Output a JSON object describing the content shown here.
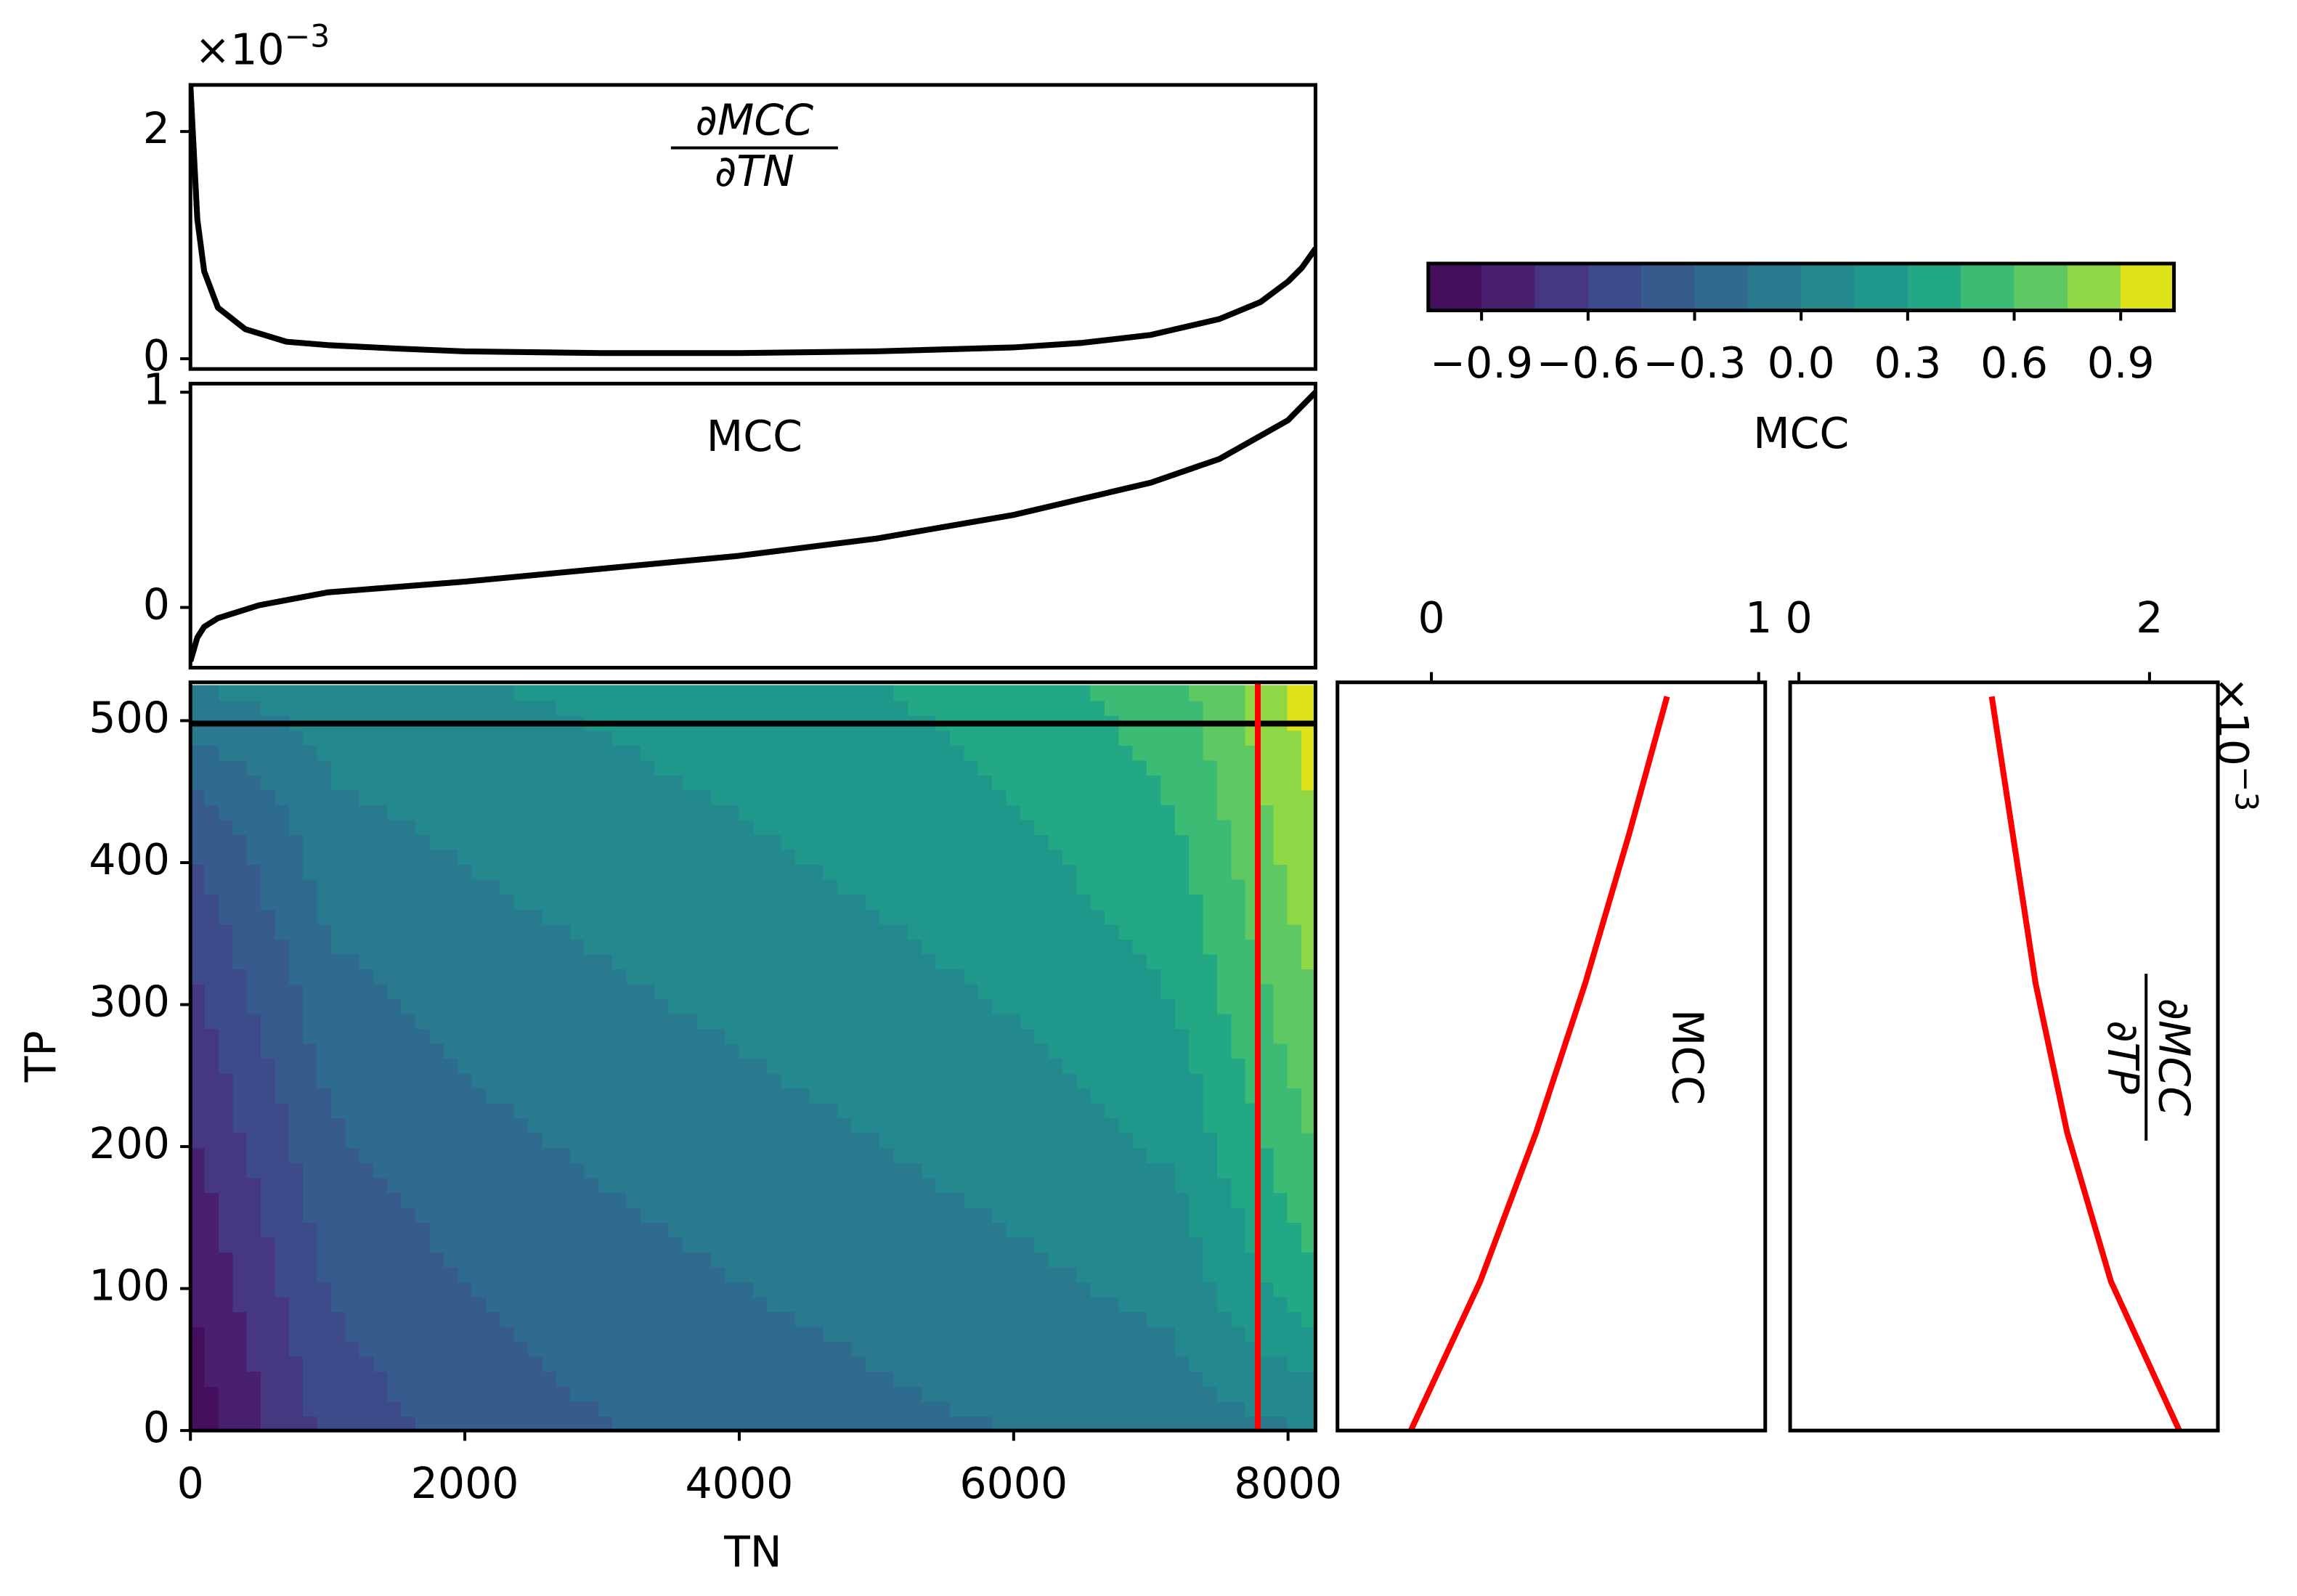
{
  "chart_data": [
    {
      "type": "line",
      "title_numerator": "∂MCC",
      "title_denominator": "∂TN",
      "offset_label": {
        "base": "×10",
        "exponent": "−3"
      },
      "x": [
        0,
        50,
        100,
        200,
        400,
        700,
        1000,
        1500,
        2000,
        3000,
        4000,
        5000,
        6000,
        6500,
        7000,
        7500,
        7800,
        8000,
        8100,
        8200
      ],
      "series": [
        {
          "color": "#000000",
          "values": [
            2.4,
            1.23,
            0.77,
            0.45,
            0.26,
            0.15,
            0.12,
            0.09,
            0.065,
            0.05,
            0.05,
            0.065,
            0.1,
            0.14,
            0.21,
            0.35,
            0.5,
            0.68,
            0.8,
            0.97
          ]
        }
      ],
      "xlim": [
        0,
        8200
      ],
      "ylim": [
        -0.09,
        2.41
      ],
      "yticks": [
        0,
        2
      ]
    },
    {
      "type": "line",
      "title": "MCC",
      "x": [
        0,
        50,
        100,
        200,
        500,
        1000,
        2000,
        3000,
        4000,
        5000,
        6000,
        7000,
        7500,
        8000,
        8200
      ],
      "series": [
        {
          "color": "#000000",
          "values": [
            -0.25,
            -0.14,
            -0.09,
            -0.05,
            0.01,
            0.07,
            0.12,
            0.18,
            0.24,
            0.32,
            0.43,
            0.58,
            0.69,
            0.87,
            1.0
          ]
        }
      ],
      "xlim": [
        0,
        8200
      ],
      "ylim": [
        -0.28,
        1.04
      ],
      "yticks": [
        0,
        1
      ]
    },
    {
      "type": "contour",
      "x_label": "TN",
      "y_label": "TP",
      "x": [
        0,
        1025,
        2050,
        3075,
        4100,
        5125,
        6150,
        7175,
        8200
      ],
      "y": [
        0,
        105,
        210,
        315,
        420,
        525
      ],
      "z": [
        [
          -1,
          -0.544,
          -0.391,
          -0.302,
          -0.238,
          -0.187,
          -0.14,
          -0.092,
          0
        ],
        [
          -0.889,
          -0.432,
          -0.29,
          -0.206,
          -0.143,
          -0.086,
          -0.028,
          0.053,
          0.436
        ],
        [
          -0.765,
          -0.313,
          -0.187,
          -0.11,
          -0.048,
          0.012,
          0.081,
          0.188,
          0.621
        ],
        [
          -0.621,
          -0.188,
          -0.081,
          -0.012,
          0.048,
          0.11,
          0.187,
          0.313,
          0.765
        ],
        [
          -0.436,
          -0.053,
          0.028,
          0.086,
          0.143,
          0.206,
          0.29,
          0.432,
          0.889
        ],
        [
          0,
          0.092,
          0.14,
          0.187,
          0.238,
          0.302,
          0.391,
          0.544,
          1
        ]
      ],
      "levels": [
        -1.05,
        -0.9,
        -0.75,
        -0.6,
        -0.45,
        -0.3,
        -0.15,
        0,
        0.15,
        0.3,
        0.45,
        0.6,
        0.75,
        0.9,
        1.05
      ],
      "colors": [
        "#450f5e",
        "#48206f",
        "#453780",
        "#3e4b8a",
        "#365b8c",
        "#2f6b8e",
        "#297a8e",
        "#23898e",
        "#1f988b",
        "#22a884",
        "#3cbb75",
        "#5ec962",
        "#8fd744",
        "#dde318"
      ],
      "xlim": [
        0,
        8200
      ],
      "ylim": [
        0,
        527
      ],
      "xticks": [
        0,
        2000,
        4000,
        6000,
        8000
      ],
      "yticks": [
        0,
        100,
        200,
        300,
        400,
        500
      ],
      "hline": {
        "value": 498,
        "color": "#000000"
      },
      "vline": {
        "value": 7780,
        "color": "#ff0000"
      },
      "colorbar": {
        "label": "MCC",
        "ticks": [
          {
            "value": -0.9,
            "label": "−0.9"
          },
          {
            "value": -0.6,
            "label": "−0.6"
          },
          {
            "value": -0.3,
            "label": "−0.3"
          },
          {
            "value": 0,
            "label": "0.0"
          },
          0.3,
          0.6,
          0.9
        ]
      }
    },
    {
      "type": "line",
      "orientation": "vertical",
      "title": "MCC",
      "y": [
        0,
        105,
        210,
        315,
        420,
        517
      ],
      "series": [
        {
          "color": "#ff0000",
          "values": [
            -0.063,
            0.149,
            0.32,
            0.47,
            0.604,
            0.72
          ]
        }
      ],
      "xlim": [
        -0.287,
        1.02
      ],
      "xticks": [
        0,
        1
      ],
      "ylim": [
        0,
        527
      ]
    },
    {
      "type": "line",
      "orientation": "vertical",
      "title_numerator": "∂MCC",
      "title_denominator": "∂TP",
      "offset_label": {
        "base": "×10",
        "exponent": "−3"
      },
      "y": [
        0,
        105,
        210,
        315,
        420,
        517
      ],
      "series": [
        {
          "color": "#ff0000",
          "values": [
            2.17,
            1.78,
            1.53,
            1.35,
            1.22,
            1.1
          ]
        }
      ],
      "xlim": [
        -0.05,
        2.39
      ],
      "xticks": [
        0,
        2
      ],
      "ylim": [
        0,
        527
      ]
    }
  ]
}
